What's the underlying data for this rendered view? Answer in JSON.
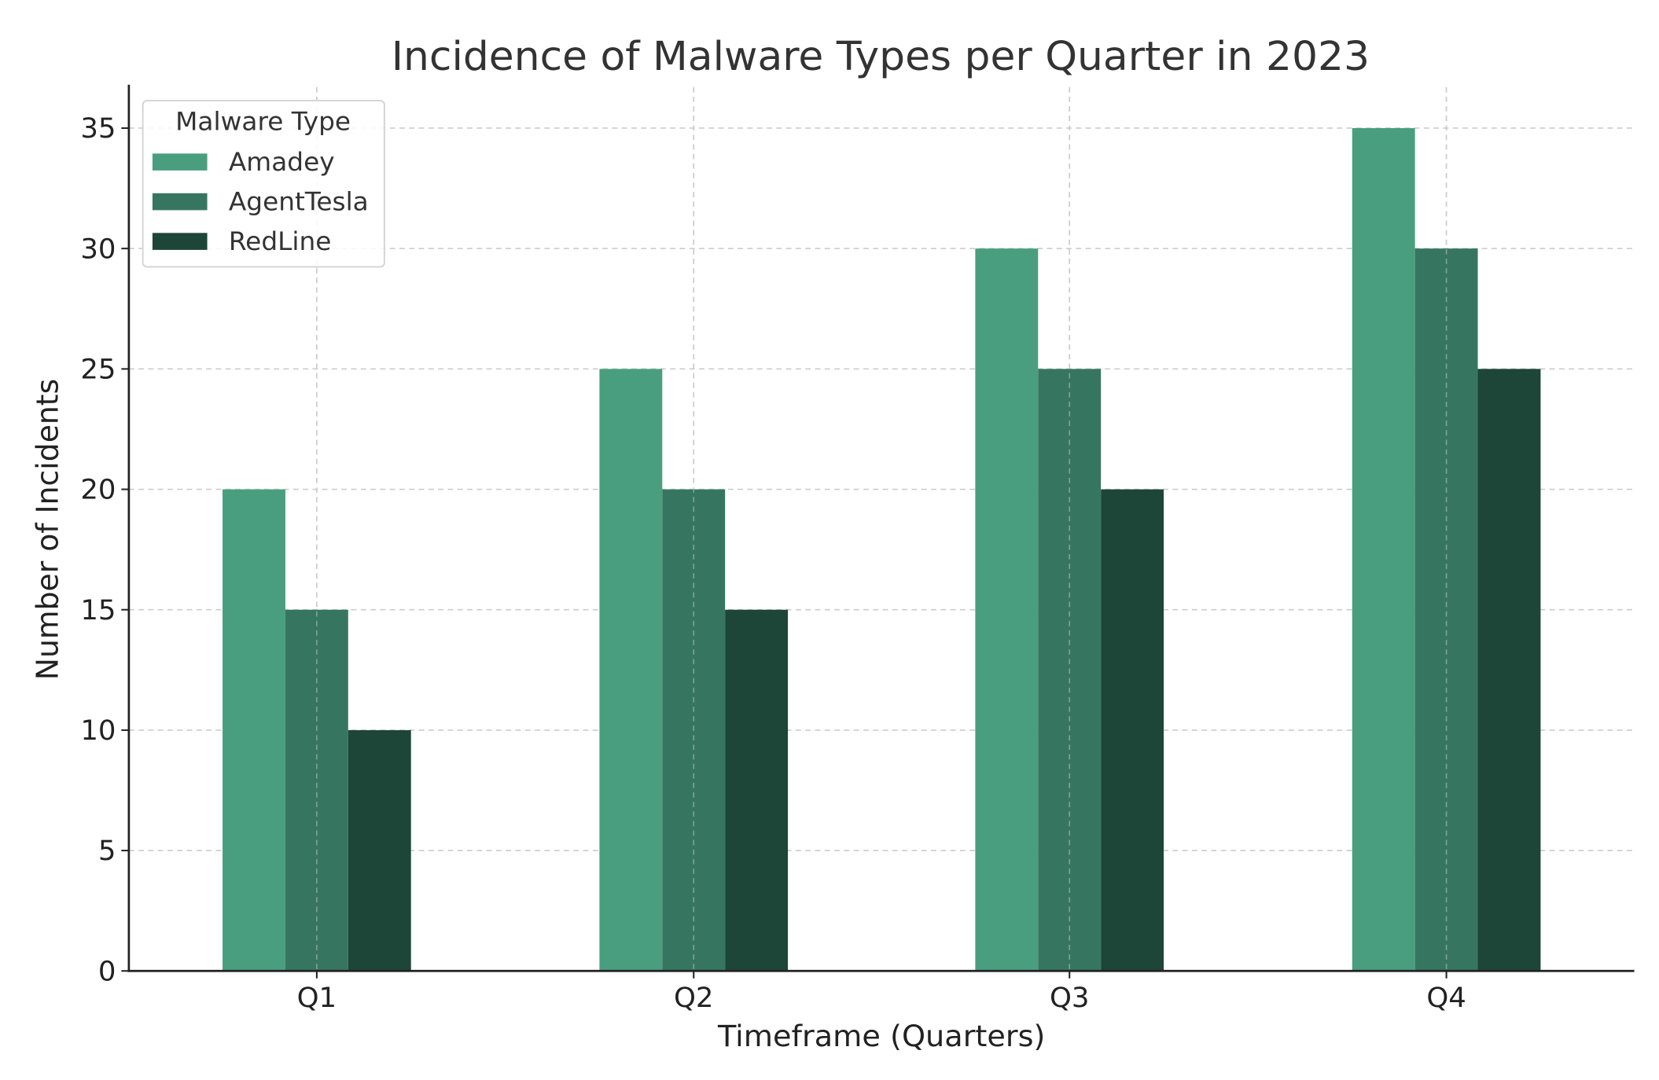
{
  "chart_data": {
    "type": "bar",
    "title": "Incidence of Malware Types per Quarter in 2023",
    "xlabel": "Timeframe (Quarters)",
    "ylabel": "Number of Incidents",
    "categories": [
      "Q1",
      "Q2",
      "Q3",
      "Q4"
    ],
    "series": [
      {
        "name": "Amadey",
        "values": [
          20,
          25,
          30,
          35
        ],
        "color": "#4a9e80"
      },
      {
        "name": "AgentTesla",
        "values": [
          15,
          20,
          25,
          30
        ],
        "color": "#367660"
      },
      {
        "name": "RedLine",
        "values": [
          10,
          15,
          20,
          25
        ],
        "color": "#1d4538"
      }
    ],
    "ylim": [
      0,
      36.7
    ],
    "yticks": [
      0,
      5,
      10,
      15,
      20,
      25,
      30,
      35
    ],
    "grid": true,
    "legend": {
      "title": "Malware Type",
      "placement": "top-left"
    }
  }
}
